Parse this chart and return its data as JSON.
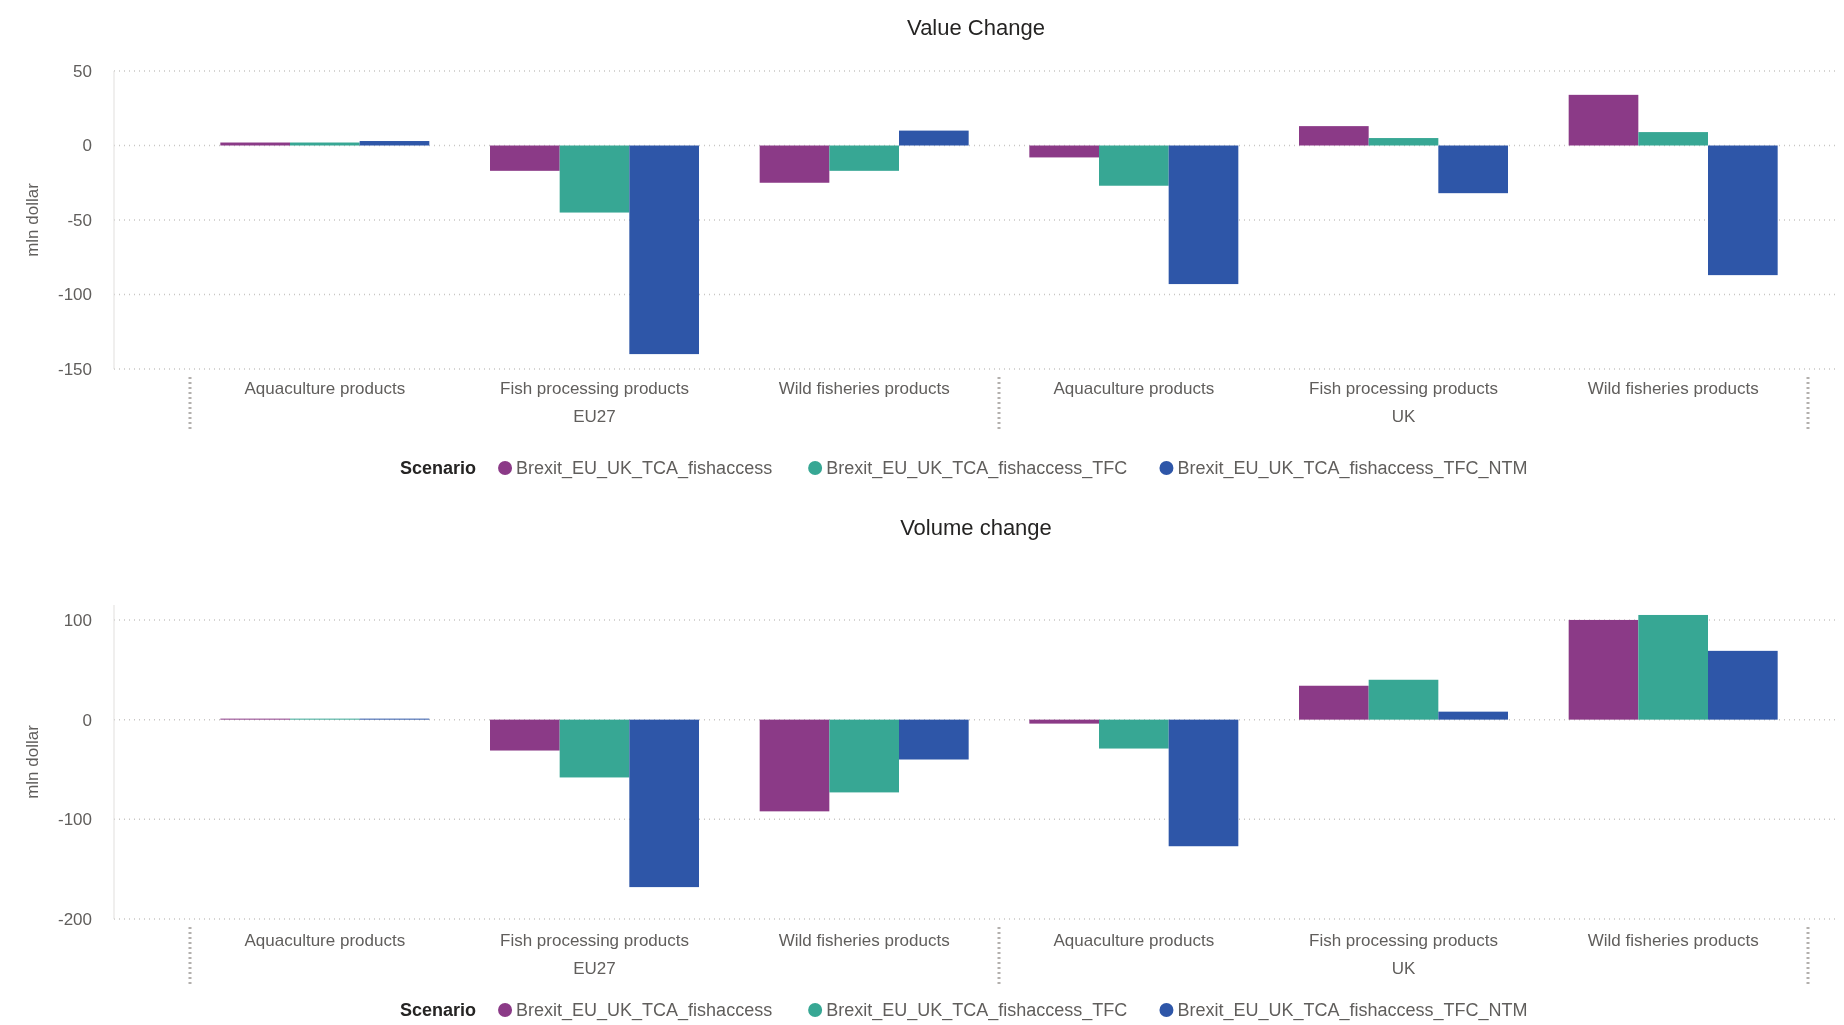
{
  "chart_data": [
    {
      "type": "bar",
      "title": "Value Change",
      "ylabel": "mln dollar",
      "legend_title": "Scenario",
      "legend": "bottom",
      "grid": "y",
      "line_style": "dotted",
      "categories": [
        "Aquaculture products",
        "Fish processing products",
        "Wild fisheries products",
        "Aquaculture products",
        "Fish processing products",
        "Wild fisheries products"
      ],
      "annotations": [
        "EU27",
        "UK"
      ],
      "ylim": [
        -150,
        50
      ],
      "yticks": [
        -150,
        -100,
        -50,
        0,
        50
      ],
      "series": [
        {
          "name": "Brexit_EU_UK_TCA_fishaccess",
          "color": "#8b3a87",
          "values": [
            2,
            -17,
            -25,
            -8,
            13,
            34
          ]
        },
        {
          "name": "Brexit_EU_UK_TCA_fishaccess_TFC",
          "color": "#37a794",
          "values": [
            2,
            -45,
            -17,
            -27,
            5,
            9
          ]
        },
        {
          "name": "Brexit_EU_UK_TCA_fishaccess_TFC_NTM",
          "color": "#2e56a8",
          "values": [
            3,
            -140,
            10,
            -93,
            -32,
            -87
          ]
        }
      ]
    },
    {
      "type": "bar",
      "title": "Volume change",
      "ylabel": "mln dollar",
      "legend_title": "Scenario",
      "legend": "bottom",
      "grid": "y",
      "line_style": "dotted",
      "categories": [
        "Aquaculture products",
        "Fish processing products",
        "Wild fisheries products",
        "Aquaculture products",
        "Fish processing products",
        "Wild fisheries products"
      ],
      "annotations": [
        "EU27",
        "UK"
      ],
      "ylim": [
        -200,
        115
      ],
      "yticks": [
        -200,
        -100,
        0,
        100
      ],
      "series": [
        {
          "name": "Brexit_EU_UK_TCA_fishaccess",
          "color": "#8b3a87",
          "values": [
            1,
            -31,
            -92,
            -4,
            34,
            100
          ]
        },
        {
          "name": "Brexit_EU_UK_TCA_fishaccess_TFC",
          "color": "#37a794",
          "values": [
            1,
            -58,
            -73,
            -29,
            40,
            105
          ]
        },
        {
          "name": "Brexit_EU_UK_TCA_fishaccess_TFC_NTM",
          "color": "#2e56a8",
          "values": [
            1,
            -168,
            -40,
            -127,
            8,
            69
          ]
        }
      ]
    }
  ]
}
